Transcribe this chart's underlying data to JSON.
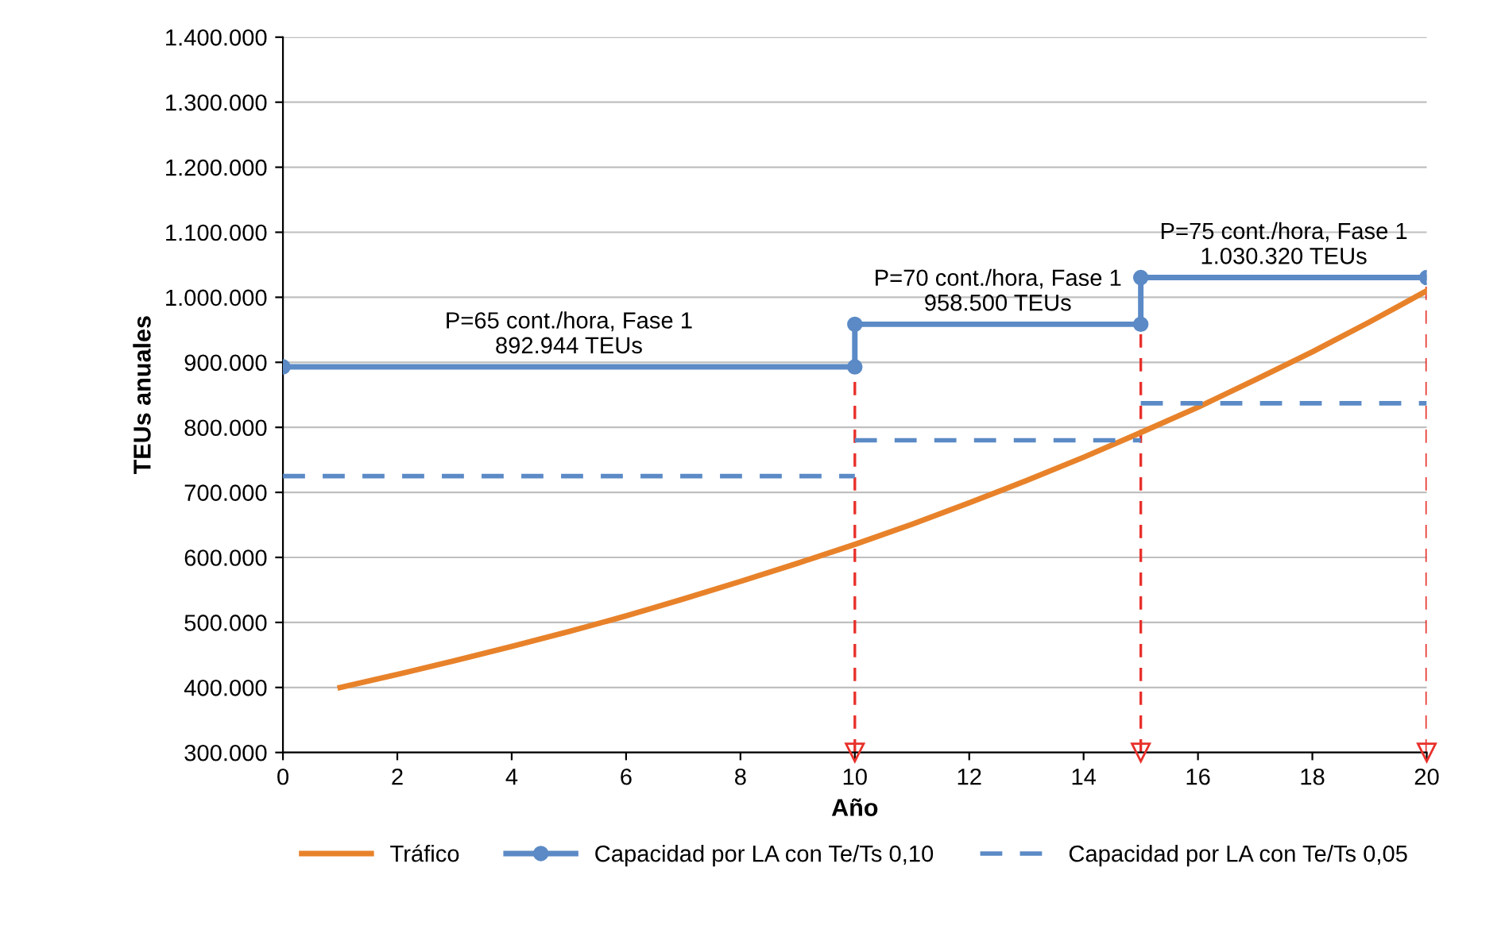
{
  "chart_data": {
    "type": "line",
    "xlabel": "Año",
    "ylabel": "TEUs anuales",
    "xlim": [
      0,
      20
    ],
    "xticks": [
      0,
      2,
      4,
      6,
      8,
      10,
      12,
      14,
      16,
      18,
      20
    ],
    "ylim": [
      300000,
      1400000
    ],
    "yticks": [
      {
        "value": 300000,
        "label": "300.000"
      },
      {
        "value": 400000,
        "label": "400.000"
      },
      {
        "value": 500000,
        "label": "500.000"
      },
      {
        "value": 600000,
        "label": "600.000"
      },
      {
        "value": 700000,
        "label": "700.000"
      },
      {
        "value": 800000,
        "label": "800.000"
      },
      {
        "value": 900000,
        "label": "900.000"
      },
      {
        "value": 1000000,
        "label": "1.000.000"
      },
      {
        "value": 1100000,
        "label": "1.100.000"
      },
      {
        "value": 1200000,
        "label": "1.200.000"
      },
      {
        "value": 1300000,
        "label": "1.300.000"
      },
      {
        "value": 1400000,
        "label": "1.400.000"
      }
    ],
    "grid": "y",
    "legend": "bottom",
    "series": [
      {
        "name": "Tráfico",
        "color": "#e8822a",
        "marker": "none",
        "line_style": "solid",
        "x": [
          1,
          2,
          3,
          4,
          5,
          6,
          7,
          8,
          9,
          10,
          11,
          12,
          13,
          14,
          15,
          16,
          17,
          18,
          19,
          20
        ],
        "values": [
          400000,
          420000,
          441000,
          463000,
          486000,
          510000,
          536000,
          563000,
          591000,
          620000,
          651000,
          684000,
          718000,
          754000,
          792000,
          831000,
          873000,
          916000,
          962000,
          1010000
        ]
      },
      {
        "name": "Capacidad por LA con Te/Ts 0,10",
        "color": "#5b8ac6",
        "marker": "circle",
        "line_style": "solid",
        "x": [
          0,
          10,
          10,
          15,
          15,
          20
        ],
        "values": [
          892944,
          892944,
          958500,
          958500,
          1030320,
          1030320
        ]
      },
      {
        "name": "Capacidad por LA con Te/Ts 0,05",
        "color": "#5b8ac6",
        "marker": "none",
        "line_style": "dashed",
        "x": [
          0,
          10,
          null,
          10,
          15,
          null,
          15,
          20
        ],
        "values": [
          725000,
          725000,
          null,
          780000,
          780000,
          null,
          837000,
          837000
        ]
      }
    ],
    "ref_lines": [
      {
        "axis": "x",
        "value": 10,
        "color": "#e8302a",
        "line_style": "dashed"
      },
      {
        "axis": "x",
        "value": 15,
        "color": "#e8302a",
        "line_style": "dashed"
      },
      {
        "axis": "x",
        "value": 20,
        "color": "#e8302a",
        "line_style": "dashed"
      }
    ],
    "annotations": [
      {
        "text": "P=65 cont./hora, Fase 1\n892.944 TEUs",
        "x": 5,
        "y": 892944
      },
      {
        "text": "P=70 cont./hora, Fase 1\n958.500 TEUs",
        "x": 12.5,
        "y": 958500
      },
      {
        "text": "P=75 cont./hora, Fase 1\n1.030.320 TEUs",
        "x": 17.5,
        "y": 1030320
      }
    ]
  }
}
